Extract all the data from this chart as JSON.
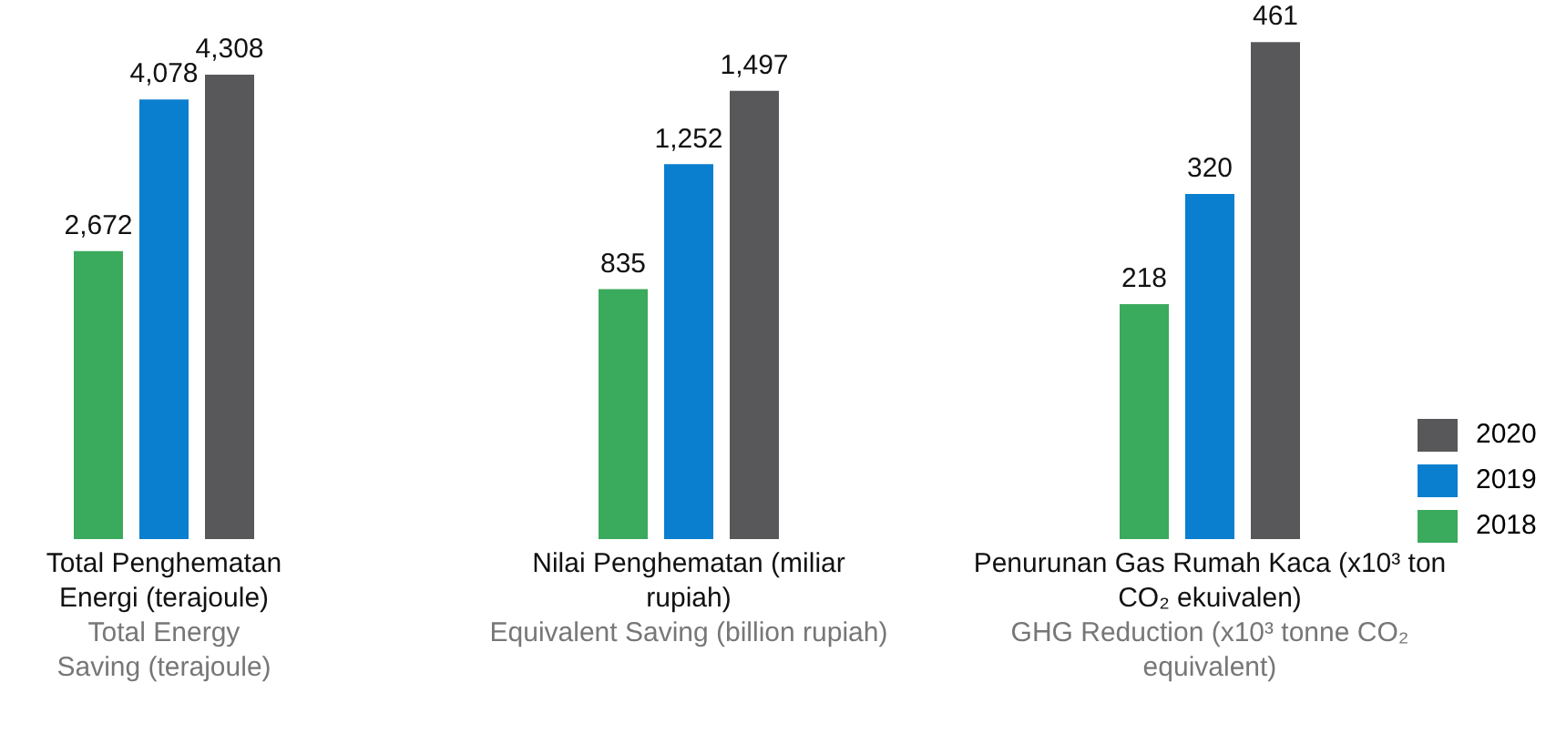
{
  "chart_data": [
    {
      "type": "bar",
      "categories": [
        null
      ],
      "xlabel": "Total Penghematan Energi (terajoule)",
      "annotations": [
        "Total Energy Saving (terajoule)"
      ],
      "series": [
        {
          "color": "#3aaa5c",
          "values": [
            2672
          ],
          "value_labels": [
            "2,672"
          ]
        },
        {
          "color": "#0a7fcf",
          "values": [
            4078
          ],
          "value_labels": [
            "4,078"
          ]
        },
        {
          "color": "#58585a",
          "values": [
            4308
          ],
          "value_labels": [
            "4,308"
          ]
        }
      ]
    },
    {
      "type": "bar",
      "categories": [
        null
      ],
      "xlabel": "Nilai Penghematan (miliar rupiah)",
      "annotations": [
        "Equivalent Saving (billion rupiah)"
      ],
      "series": [
        {
          "color": "#3aaa5c",
          "values": [
            835
          ],
          "value_labels": [
            "835"
          ]
        },
        {
          "color": "#0a7fcf",
          "values": [
            1252
          ],
          "value_labels": [
            "1,252"
          ]
        },
        {
          "color": "#58585a",
          "values": [
            1497
          ],
          "value_labels": [
            "1,497"
          ]
        }
      ]
    },
    {
      "type": "bar",
      "categories": [
        null
      ],
      "xlabel": "Penurunan Gas Rumah Kaca (x10³ ton CO₂ ekuivalen)",
      "annotations": [
        "GHG Reduction (x10³ tonne CO₂ equivalent)"
      ],
      "legend": "right",
      "series": [
        {
          "name": "2018",
          "color": "#3aaa5c",
          "values": [
            218
          ],
          "value_labels": [
            "218"
          ]
        },
        {
          "name": "2019",
          "color": "#0a7fcf",
          "values": [
            320
          ],
          "value_labels": [
            "320"
          ]
        },
        {
          "name": "2020",
          "color": "#58585a",
          "values": [
            461
          ],
          "value_labels": [
            "461"
          ]
        }
      ]
    }
  ]
}
